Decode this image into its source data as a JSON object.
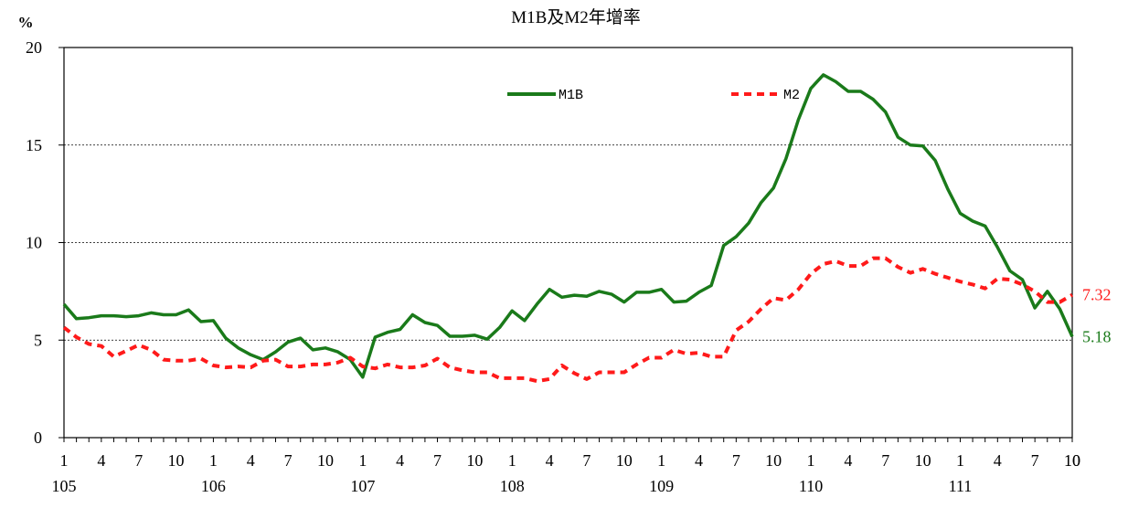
{
  "chart_data": {
    "type": "line",
    "title": "M1B及M2年增率",
    "ylabel": "%",
    "xlabel": "",
    "ylim": [
      0,
      20
    ],
    "yticks": [
      0,
      5,
      10,
      15,
      20
    ],
    "grid": "horizontal dashed at 5, 10, 15",
    "legend_position": "top",
    "x_tick_months": [
      "1",
      "4",
      "7",
      "10",
      "1",
      "4",
      "7",
      "10",
      "1",
      "4",
      "7",
      "10",
      "1",
      "4",
      "7",
      "10",
      "1",
      "4",
      "7",
      "10",
      "1",
      "4",
      "7",
      "10",
      "1",
      "4",
      "7",
      "10"
    ],
    "x_tick_index": [
      0,
      3,
      6,
      9,
      12,
      15,
      18,
      21,
      24,
      27,
      30,
      33,
      36,
      39,
      42,
      45,
      48,
      51,
      54,
      57,
      60,
      63,
      66,
      69,
      72,
      75,
      78,
      81
    ],
    "x_tick_last": {
      "label": "10",
      "index": 81
    },
    "year_labels": [
      {
        "label": "105",
        "index": 0
      },
      {
        "label": "106",
        "index": 12
      },
      {
        "label": "107",
        "index": 24
      },
      {
        "label": "108",
        "index": 36
      },
      {
        "label": "109",
        "index": 48
      },
      {
        "label": "110",
        "index": 60
      },
      {
        "label": "111",
        "index": 72
      }
    ],
    "series": [
      {
        "name": "M1B",
        "color": "#1a7a1a",
        "style": "solid",
        "end_label": "5.18",
        "values": [
          6.84,
          6.1,
          6.15,
          6.25,
          6.25,
          6.2,
          6.25,
          6.4,
          6.3,
          6.3,
          6.55,
          5.95,
          6.0,
          5.1,
          4.6,
          4.25,
          4.0,
          4.4,
          4.9,
          5.1,
          4.5,
          4.6,
          4.4,
          4.0,
          3.1,
          5.15,
          5.4,
          5.55,
          6.3,
          5.9,
          5.75,
          5.2,
          5.2,
          5.25,
          5.05,
          5.65,
          6.5,
          6.0,
          6.85,
          7.6,
          7.2,
          7.3,
          7.25,
          7.5,
          7.35,
          6.95,
          7.45,
          7.45,
          7.6,
          6.95,
          7.0,
          7.45,
          7.8,
          9.85,
          10.3,
          11.0,
          12.05,
          12.8,
          14.3,
          16.3,
          17.9,
          18.6,
          18.25,
          17.75,
          17.75,
          17.35,
          16.7,
          15.4,
          15.0,
          14.95,
          14.2,
          12.75,
          11.5,
          11.1,
          10.85,
          9.75,
          8.55,
          8.1,
          6.65,
          7.5,
          6.6,
          5.18
        ]
      },
      {
        "name": "M2",
        "color": "#ff1a1a",
        "style": "dashed",
        "end_label": "7.32",
        "values": [
          5.65,
          5.15,
          4.8,
          4.7,
          4.15,
          4.45,
          4.75,
          4.5,
          4.0,
          3.95,
          3.95,
          4.05,
          3.7,
          3.6,
          3.65,
          3.6,
          3.95,
          4.0,
          3.65,
          3.65,
          3.75,
          3.75,
          3.85,
          4.1,
          3.65,
          3.55,
          3.75,
          3.6,
          3.6,
          3.7,
          4.05,
          3.6,
          3.45,
          3.35,
          3.35,
          3.05,
          3.05,
          3.05,
          2.9,
          3.0,
          3.7,
          3.3,
          3.0,
          3.35,
          3.35,
          3.35,
          3.75,
          4.1,
          4.1,
          4.5,
          4.3,
          4.35,
          4.15,
          4.15,
          5.5,
          5.95,
          6.6,
          7.15,
          7.05,
          7.6,
          8.4,
          8.9,
          9.05,
          8.8,
          8.8,
          9.2,
          9.2,
          8.75,
          8.45,
          8.65,
          8.4,
          8.2,
          8.0,
          7.85,
          7.65,
          8.15,
          8.1,
          7.85,
          7.5,
          6.95,
          6.95,
          7.32
        ]
      }
    ]
  }
}
